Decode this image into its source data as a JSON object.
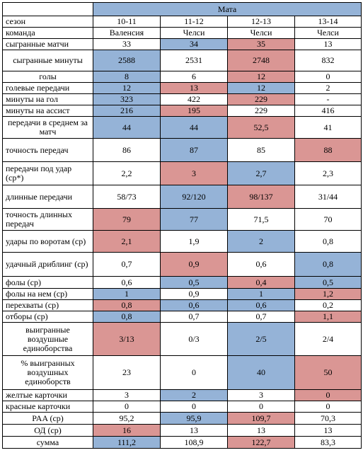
{
  "player": "Мата",
  "columns": [
    "10-11",
    "11-12",
    "12-13",
    "13-14"
  ],
  "rows": [
    {
      "label": "сезон",
      "cells": [
        {
          "v": "10-11",
          "c": ""
        },
        {
          "v": "11-12",
          "c": ""
        },
        {
          "v": "12-13",
          "c": ""
        },
        {
          "v": "13-14",
          "c": ""
        }
      ]
    },
    {
      "label": "команда",
      "cells": [
        {
          "v": "Валенсия",
          "c": ""
        },
        {
          "v": "Челси",
          "c": ""
        },
        {
          "v": "Челси",
          "c": ""
        },
        {
          "v": "Челси",
          "c": ""
        }
      ]
    },
    {
      "label": "сыгранные матчи",
      "cells": [
        {
          "v": "33",
          "c": ""
        },
        {
          "v": "34",
          "c": "blue"
        },
        {
          "v": "35",
          "c": "red"
        },
        {
          "v": "13",
          "c": ""
        }
      ]
    },
    {
      "label": "сыгранные минуты",
      "center": true,
      "cells": [
        {
          "v": "2588",
          "c": "blue"
        },
        {
          "v": "2531",
          "c": ""
        },
        {
          "v": "2748",
          "c": "red"
        },
        {
          "v": "832",
          "c": ""
        }
      ]
    },
    {
      "label": "голы",
      "center": true,
      "cells": [
        {
          "v": "8",
          "c": "blue"
        },
        {
          "v": "6",
          "c": ""
        },
        {
          "v": "12",
          "c": "red"
        },
        {
          "v": "0",
          "c": ""
        }
      ]
    },
    {
      "label": "голевые передачи",
      "cells": [
        {
          "v": "12",
          "c": "blue"
        },
        {
          "v": "13",
          "c": "red"
        },
        {
          "v": "12",
          "c": "blue"
        },
        {
          "v": "2",
          "c": ""
        }
      ]
    },
    {
      "label": "минуты на гол",
      "cells": [
        {
          "v": "323",
          "c": "blue"
        },
        {
          "v": "422",
          "c": ""
        },
        {
          "v": "229",
          "c": "red"
        },
        {
          "v": "-",
          "c": ""
        }
      ]
    },
    {
      "label": "минуты на ассист",
      "cells": [
        {
          "v": "216",
          "c": "blue"
        },
        {
          "v": "195",
          "c": "red"
        },
        {
          "v": "229",
          "c": ""
        },
        {
          "v": "416",
          "c": ""
        }
      ]
    },
    {
      "label": "передачи в среднем за матч",
      "center": true,
      "cells": [
        {
          "v": "44",
          "c": "blue"
        },
        {
          "v": "44",
          "c": "blue"
        },
        {
          "v": "52,5",
          "c": "red"
        },
        {
          "v": "41",
          "c": ""
        }
      ]
    },
    {
      "label": "точность передач",
      "cells": [
        {
          "v": "86",
          "c": ""
        },
        {
          "v": "87",
          "c": "blue"
        },
        {
          "v": "85",
          "c": ""
        },
        {
          "v": "88",
          "c": "red"
        }
      ]
    },
    {
      "label": "передачи под удар (ср*)",
      "cells": [
        {
          "v": "2,2",
          "c": ""
        },
        {
          "v": "3",
          "c": "red"
        },
        {
          "v": "2,7",
          "c": "blue"
        },
        {
          "v": "2,3",
          "c": ""
        }
      ]
    },
    {
      "label": "длинные передачи",
      "cells": [
        {
          "v": "58/73",
          "c": ""
        },
        {
          "v": "92/120",
          "c": "blue"
        },
        {
          "v": "98/137",
          "c": "red"
        },
        {
          "v": "31/44",
          "c": ""
        }
      ]
    },
    {
      "label": "точность длинных передач",
      "cells": [
        {
          "v": "79",
          "c": "red"
        },
        {
          "v": "77",
          "c": "blue"
        },
        {
          "v": "71,5",
          "c": ""
        },
        {
          "v": "70",
          "c": ""
        }
      ]
    },
    {
      "label": "удары по воротам (ср)",
      "cells": [
        {
          "v": "2,1",
          "c": "red"
        },
        {
          "v": "1,9",
          "c": ""
        },
        {
          "v": "2",
          "c": "blue"
        },
        {
          "v": "0,8",
          "c": ""
        }
      ]
    },
    {
      "label": "удачный дриблинг (ср)",
      "cells": [
        {
          "v": "0,7",
          "c": ""
        },
        {
          "v": "0,9",
          "c": "red"
        },
        {
          "v": "0,6",
          "c": ""
        },
        {
          "v": "0,8",
          "c": "blue"
        }
      ]
    },
    {
      "label": "фолы (ср)",
      "cells": [
        {
          "v": "0,6",
          "c": ""
        },
        {
          "v": "0,5",
          "c": "blue"
        },
        {
          "v": "0,4",
          "c": "red"
        },
        {
          "v": "0,5",
          "c": "blue"
        }
      ]
    },
    {
      "label": "фолы на нем (ср)",
      "cells": [
        {
          "v": "1",
          "c": "blue"
        },
        {
          "v": "0,9",
          "c": ""
        },
        {
          "v": "1",
          "c": "blue"
        },
        {
          "v": "1,2",
          "c": "red"
        }
      ]
    },
    {
      "label": "перехваты (ср)",
      "cells": [
        {
          "v": "0,8",
          "c": "red"
        },
        {
          "v": "0,6",
          "c": "blue"
        },
        {
          "v": "0,6",
          "c": "blue"
        },
        {
          "v": "0,2",
          "c": ""
        }
      ]
    },
    {
      "label": "отборы (ср)",
      "cells": [
        {
          "v": "0,8",
          "c": "blue"
        },
        {
          "v": "0,7",
          "c": ""
        },
        {
          "v": "0,7",
          "c": ""
        },
        {
          "v": "1,1",
          "c": "red"
        }
      ]
    },
    {
      "label": "выигранные воздушные единоборства",
      "center": true,
      "cells": [
        {
          "v": "3/13",
          "c": "red"
        },
        {
          "v": "0/3",
          "c": ""
        },
        {
          "v": "2/5",
          "c": "blue"
        },
        {
          "v": "2/4",
          "c": ""
        }
      ]
    },
    {
      "label": "% выигранных воздушных единоборств",
      "center": true,
      "cells": [
        {
          "v": "23",
          "c": ""
        },
        {
          "v": "0",
          "c": ""
        },
        {
          "v": "40",
          "c": "blue"
        },
        {
          "v": "50",
          "c": "red"
        }
      ]
    },
    {
      "label": "желтые карточки",
      "cells": [
        {
          "v": "3",
          "c": ""
        },
        {
          "v": "2",
          "c": "blue"
        },
        {
          "v": "3",
          "c": ""
        },
        {
          "v": "0",
          "c": "red"
        }
      ]
    },
    {
      "label": "красные карточки",
      "cells": [
        {
          "v": "0",
          "c": ""
        },
        {
          "v": "0",
          "c": ""
        },
        {
          "v": "0",
          "c": ""
        },
        {
          "v": "0",
          "c": ""
        }
      ]
    },
    {
      "label": "PAA (ср)",
      "center": true,
      "cells": [
        {
          "v": "95,2",
          "c": ""
        },
        {
          "v": "95,9",
          "c": "blue"
        },
        {
          "v": "109,7",
          "c": "red"
        },
        {
          "v": "70,3",
          "c": ""
        }
      ]
    },
    {
      "label": "ОД (ср)",
      "center": true,
      "cells": [
        {
          "v": "16",
          "c": "red"
        },
        {
          "v": "13",
          "c": ""
        },
        {
          "v": "13",
          "c": ""
        },
        {
          "v": "13",
          "c": ""
        }
      ]
    },
    {
      "label": "сумма",
      "center": true,
      "cells": [
        {
          "v": "111,2",
          "c": "blue"
        },
        {
          "v": "108,9",
          "c": ""
        },
        {
          "v": "122,7",
          "c": "red"
        },
        {
          "v": "83,3",
          "c": ""
        }
      ]
    }
  ],
  "colors": {
    "blue": "#95b3d7",
    "red": "#da9694"
  }
}
